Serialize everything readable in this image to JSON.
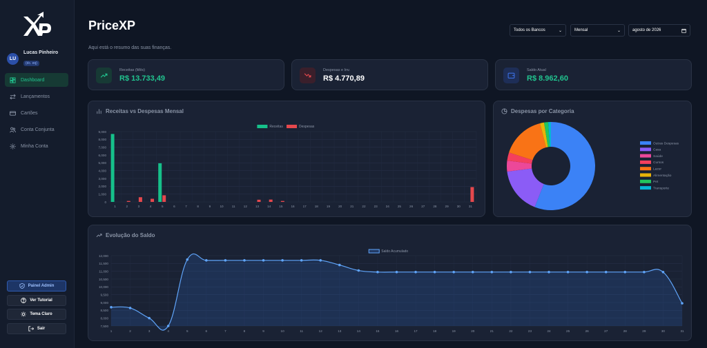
{
  "app": {
    "title": "PriceXP",
    "subtitle": "Aqui está o resumo das suas finanças."
  },
  "user": {
    "initials": "LU",
    "name": "Lucas Pinheiro",
    "badge": "(dc. eq)"
  },
  "nav": [
    {
      "label": "Dashboard",
      "icon": "dashboard-icon",
      "active": true
    },
    {
      "label": "Lançamentos",
      "icon": "arrows-icon"
    },
    {
      "label": "Cartões",
      "icon": "card-icon"
    },
    {
      "label": "Conta Conjunta",
      "icon": "users-icon"
    },
    {
      "label": "Minha Conta",
      "icon": "gear-icon"
    }
  ],
  "sidebar_buttons": {
    "admin": "Painel Admin",
    "tutorial": "Ver Tutorial",
    "theme": "Tema Claro",
    "logout": "Sair"
  },
  "filters": {
    "bank": "Todos os Bancos",
    "period": "Mensal",
    "month": "agosto de 2026"
  },
  "stats": [
    {
      "label": "Receitas (Mês)",
      "value": "R$ 13.733,49",
      "color": "#21c48f",
      "icon": "trend-up-icon"
    },
    {
      "label": "Despesas e Inv.",
      "value": "R$ 4.770,89",
      "color": "#ffffff",
      "icon": "trend-down-icon"
    },
    {
      "label": "Saldo Atual",
      "value": "R$ 8.962,60",
      "color": "#21c48f",
      "icon": "wallet-icon"
    }
  ],
  "chart_data": [
    {
      "type": "bar",
      "title": "Receitas vs Despesas Mensal",
      "categories": [
        "1",
        "2",
        "3",
        "4",
        "5",
        "6",
        "7",
        "8",
        "9",
        "10",
        "11",
        "12",
        "13",
        "14",
        "15",
        "16",
        "17",
        "18",
        "19",
        "20",
        "21",
        "22",
        "23",
        "24",
        "25",
        "26",
        "27",
        "28",
        "29",
        "30",
        "31"
      ],
      "series": [
        {
          "name": "Receitas",
          "color": "#16c08a",
          "values": [
            8700,
            0,
            0,
            0,
            4950,
            0,
            0,
            0,
            0,
            0,
            0,
            0,
            0,
            0,
            0,
            0,
            0,
            0,
            0,
            0,
            0,
            0,
            0,
            0,
            0,
            0,
            0,
            0,
            0,
            0,
            0
          ]
        },
        {
          "name": "Despesas",
          "color": "#e5484d",
          "values": [
            0,
            120,
            600,
            400,
            850,
            0,
            0,
            0,
            0,
            0,
            0,
            0,
            280,
            300,
            120,
            0,
            0,
            0,
            0,
            0,
            0,
            0,
            0,
            0,
            0,
            0,
            0,
            0,
            0,
            0,
            1900
          ]
        }
      ],
      "yticks": [
        "0",
        "1,000",
        "2,000",
        "3,000",
        "4,000",
        "5,000",
        "6,000",
        "7,000",
        "8,000",
        "9,000"
      ],
      "ylim": [
        0,
        9000
      ],
      "legend": "top-center",
      "grid": true
    },
    {
      "type": "pie",
      "title": "Despesas por Categoria",
      "labels": [
        "Outras Despesas",
        "Casa",
        "Saúde",
        "Cursos",
        "Lazer",
        "Alimentação",
        "Pet",
        "Transporte"
      ],
      "values": [
        56,
        17,
        4,
        3,
        16,
        1.5,
        1.5,
        1
      ],
      "colors": [
        "#3b82f6",
        "#8b5cf6",
        "#ec4899",
        "#f43f5e",
        "#f97316",
        "#eab308",
        "#22c55e",
        "#06b6d4"
      ],
      "legend": "right"
    },
    {
      "type": "line",
      "title": "Evolução do Saldo",
      "series": [
        {
          "name": "Saldo Acumulado",
          "color": "#60a5fa",
          "values": [
            8700,
            8650,
            8000,
            7500,
            11750,
            11700,
            11700,
            11700,
            11700,
            11700,
            11700,
            11700,
            11400,
            11050,
            10950,
            10950,
            10950,
            10950,
            10950,
            10950,
            10950,
            10950,
            10950,
            10950,
            10950,
            10950,
            10950,
            10950,
            10950,
            10950,
            8950
          ]
        }
      ],
      "x": [
        "1",
        "2",
        "3",
        "4",
        "5",
        "6",
        "7",
        "8",
        "9",
        "10",
        "11",
        "12",
        "13",
        "14",
        "15",
        "16",
        "17",
        "18",
        "19",
        "20",
        "21",
        "22",
        "23",
        "24",
        "25",
        "26",
        "27",
        "28",
        "29",
        "30",
        "31"
      ],
      "yticks": [
        "7,500",
        "8,000",
        "8,500",
        "9,000",
        "9,500",
        "10,000",
        "10,500",
        "11,000",
        "11,500",
        "12,000"
      ],
      "ylim": [
        7500,
        12000
      ],
      "legend": "top-center",
      "grid": true
    }
  ]
}
